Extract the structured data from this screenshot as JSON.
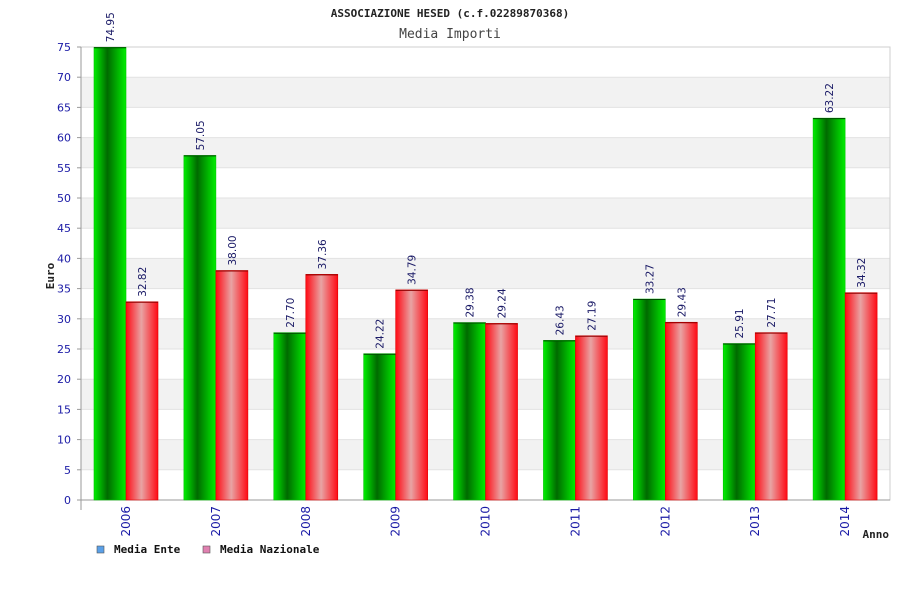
{
  "chart_data": {
    "type": "bar",
    "title": "ASSOCIAZIONE HESED (c.f.02289870368)",
    "subtitle": "Media Importi",
    "xlabel": "Anno",
    "ylabel": "Euro",
    "ylim": [
      0,
      75
    ],
    "ytick_step": 5,
    "grid": "horizontal bands",
    "legend_position": "bottom-left",
    "categories": [
      "2006",
      "2007",
      "2008",
      "2009",
      "2010",
      "2011",
      "2012",
      "2013",
      "2014"
    ],
    "series": [
      {
        "name": "Media Ente",
        "legend_color": "#5aa0e8",
        "color": "#00b000",
        "values": [
          74.95,
          57.05,
          27.7,
          24.22,
          29.38,
          26.43,
          33.27,
          25.91,
          63.22
        ],
        "labels": [
          "74.95",
          "57.05",
          "27.70",
          "24.22",
          "29.38",
          "26.43",
          "33.27",
          "25.91",
          "63.22"
        ]
      },
      {
        "name": "Media Nazionale",
        "legend_color": "#e080b0",
        "color": "#e01010",
        "values": [
          32.82,
          38.0,
          37.36,
          34.79,
          29.24,
          27.19,
          29.43,
          27.71,
          34.32
        ],
        "labels": [
          "32.82",
          "38.00",
          "37.36",
          "34.79",
          "29.24",
          "27.19",
          "29.43",
          "27.71",
          "34.32"
        ]
      }
    ]
  }
}
